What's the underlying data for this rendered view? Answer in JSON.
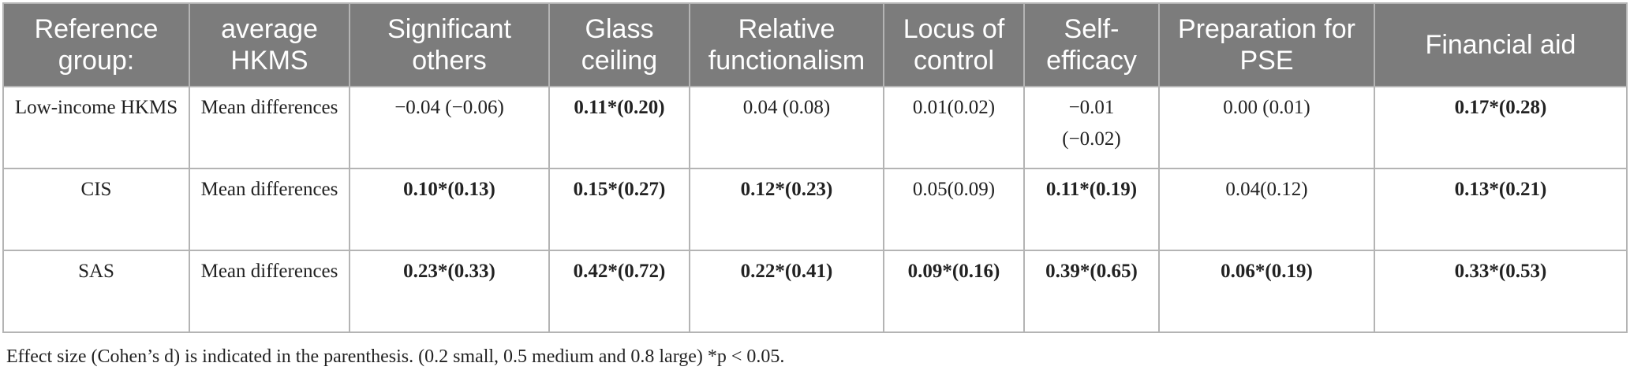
{
  "table": {
    "headers": [
      "Reference group:",
      "average HKMS",
      "Significant others",
      "Glass ceiling",
      "Relative functionalism",
      "Locus of control",
      "Self-efficacy",
      "Preparation for PSE",
      "Financial aid"
    ],
    "rows": [
      {
        "group": "Low-income HKMS",
        "measure": "Mean differences",
        "values": [
          "−0.04 (−0.06)",
          "0.11*(0.20)",
          "0.04 (0.08)",
          "0.01(0.02)",
          "−0.01 (−0.02)",
          "0.00 (0.01)",
          "0.17*(0.28)"
        ],
        "bold": [
          false,
          true,
          false,
          false,
          false,
          false,
          true
        ]
      },
      {
        "group": "CIS",
        "measure": "Mean differences",
        "values": [
          "0.10*(0.13)",
          "0.15*(0.27)",
          "0.12*(0.23)",
          "0.05(0.09)",
          "0.11*(0.19)",
          "0.04(0.12)",
          "0.13*(0.21)"
        ],
        "bold": [
          true,
          true,
          true,
          false,
          true,
          false,
          true
        ]
      },
      {
        "group": "SAS",
        "measure": "Mean differences",
        "values": [
          "0.23*(0.33)",
          "0.42*(0.72)",
          "0.22*(0.41)",
          "0.09*(0.16)",
          "0.39*(0.65)",
          "0.06*(0.19)",
          "0.33*(0.53)"
        ],
        "bold": [
          true,
          true,
          true,
          true,
          true,
          true,
          true
        ]
      }
    ]
  },
  "footnote": "Effect size (Cohen’s d) is indicated in the parenthesis. (0.2 small, 0.5 medium and 0.8 large) *p < 0.05."
}
